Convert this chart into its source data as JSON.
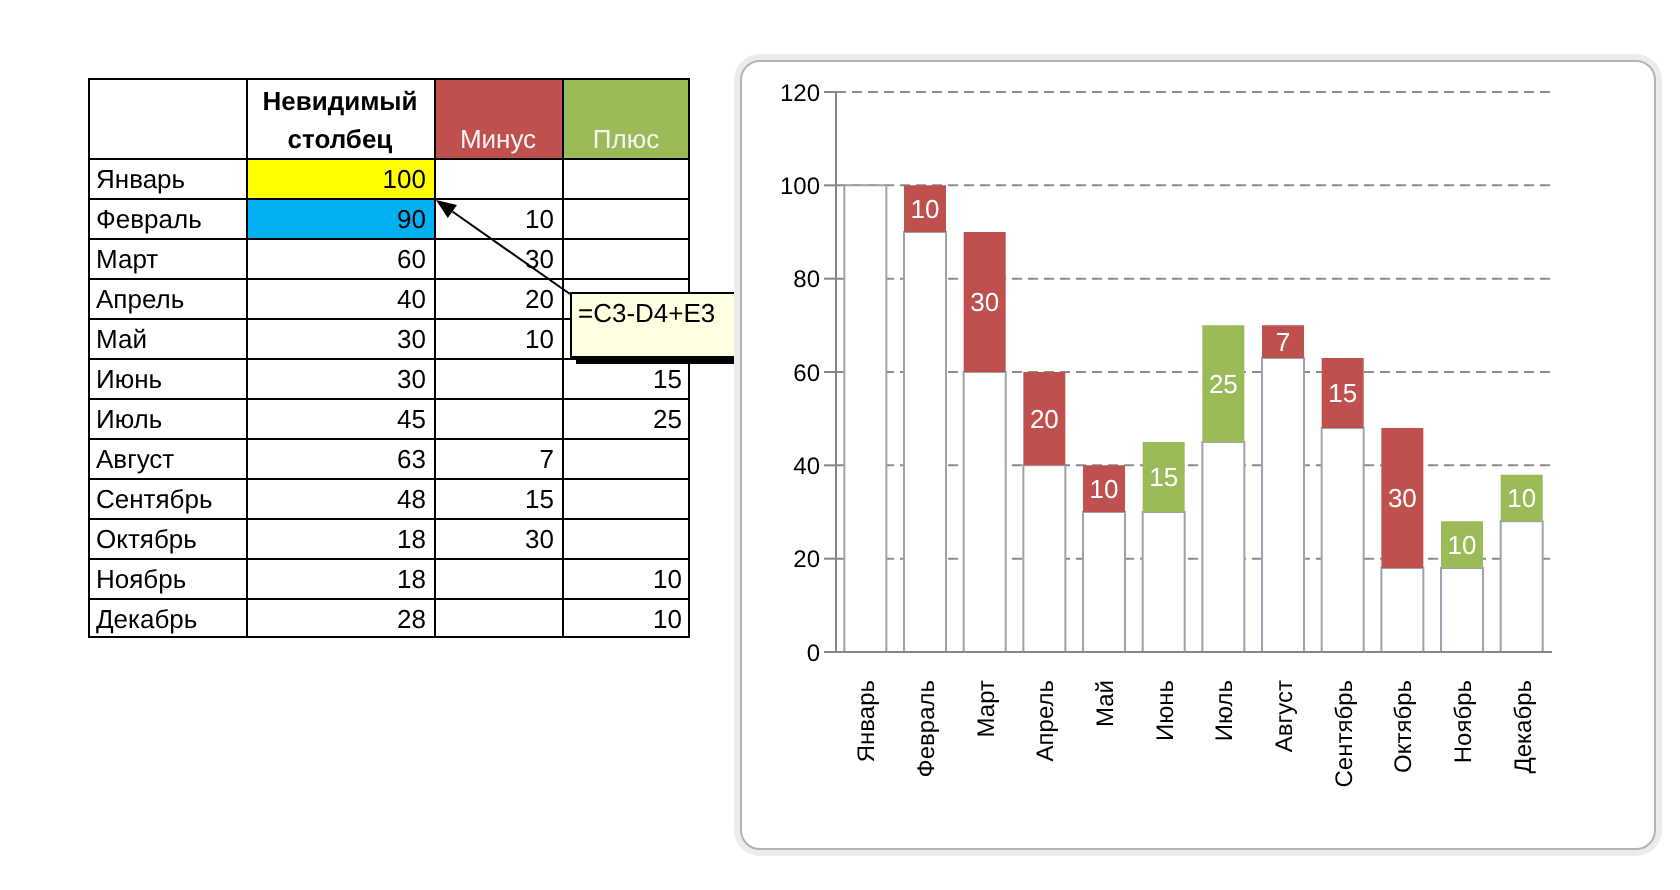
{
  "chart_data": [
    {
      "type": "other",
      "categories": [
        "Январь",
        "Февраль",
        "Март",
        "Апрель",
        "Май",
        "Июнь",
        "Июль",
        "Август",
        "Сентябрь",
        "Октябрь",
        "Ноябрь",
        "Декабрь"
      ],
      "series": [
        {
          "name": "Невидимый столбец",
          "colors": [
            "#ffff00",
            "#00b0f0",
            "#ffffff",
            "#ffffff",
            "#ffffff",
            "#ffffff",
            "#ffffff",
            "#ffffff",
            "#ffffff",
            "#ffffff",
            "#ffffff",
            "#ffffff"
          ],
          "values": [
            100,
            90,
            60,
            40,
            30,
            30,
            45,
            63,
            48,
            18,
            18,
            28
          ]
        },
        {
          "name": "Минус",
          "values": [
            null,
            10,
            30,
            20,
            10,
            null,
            null,
            7,
            15,
            30,
            null,
            null
          ]
        },
        {
          "name": "Плюс",
          "values": [
            null,
            null,
            null,
            null,
            null,
            15,
            25,
            null,
            null,
            null,
            10,
            10
          ]
        }
      ],
      "data_labels": true,
      "annotations": [
        "=C3-D4+E3"
      ]
    },
    {
      "type": "bar",
      "stacked": true,
      "categories": [
        "Январь",
        "Февраль",
        "Март",
        "Апрель",
        "Май",
        "Июнь",
        "Июль",
        "Август",
        "Сентябрь",
        "Октябрь",
        "Ноябрь",
        "Декабрь"
      ],
      "series": [
        {
          "color": "#ffffff",
          "values": [
            100,
            90,
            60,
            40,
            30,
            30,
            45,
            63,
            48,
            18,
            18,
            28
          ]
        },
        {
          "color": "#c0504d",
          "values": [
            null,
            10,
            30,
            20,
            10,
            null,
            null,
            7,
            15,
            30,
            null,
            null
          ],
          "value_labels": [
            null,
            "10",
            "30",
            "20",
            "10",
            null,
            null,
            "7",
            "15",
            "30",
            null,
            null
          ]
        },
        {
          "color": "#9bbb59",
          "values": [
            null,
            null,
            null,
            null,
            null,
            15,
            25,
            null,
            null,
            null,
            10,
            10
          ],
          "value_labels": [
            null,
            null,
            null,
            null,
            null,
            "15",
            "25",
            null,
            null,
            null,
            "10",
            "10"
          ]
        }
      ],
      "ylim": [
        0,
        120
      ],
      "yticks": [
        0,
        20,
        40,
        60,
        80,
        100,
        120
      ],
      "grid": "y"
    }
  ]
}
